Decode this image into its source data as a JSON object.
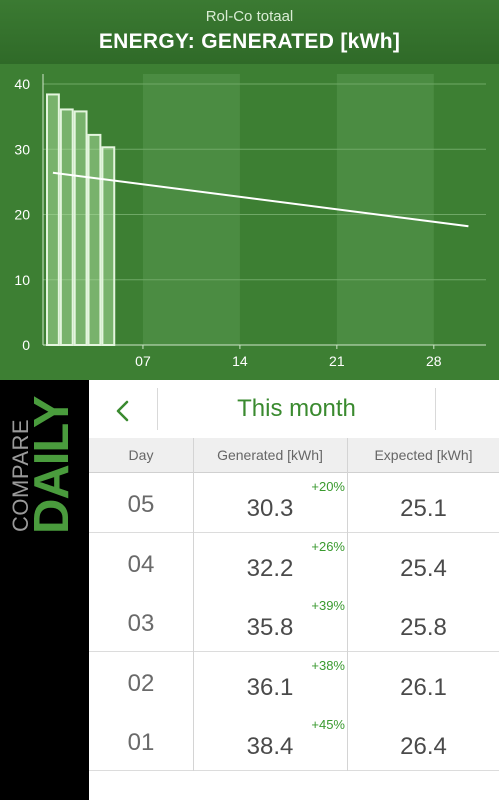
{
  "header": {
    "subtitle": "Rol-Co totaal",
    "title": "ENERGY: GENERATED [kWh]"
  },
  "chart_data": {
    "type": "bar",
    "x_ticks": [
      "07",
      "14",
      "21",
      "28"
    ],
    "y_ticks": [
      "0",
      "10",
      "20",
      "30",
      "40"
    ],
    "ylim": [
      0,
      40
    ],
    "x_range": [
      1,
      31
    ],
    "bars": [
      {
        "day": 1,
        "value": 38.4
      },
      {
        "day": 2,
        "value": 36.1
      },
      {
        "day": 3,
        "value": 35.8
      },
      {
        "day": 4,
        "value": 32.2
      },
      {
        "day": 5,
        "value": 30.3
      }
    ],
    "expected_line": [
      {
        "day": 1,
        "value": 26.4
      },
      {
        "day": 31,
        "value": 18.2
      }
    ],
    "shaded_weeks": [
      [
        8,
        14
      ],
      [
        22,
        28
      ]
    ],
    "colors": {
      "background": "#3d7f33",
      "band": "#4b8c42",
      "bar": "#a9dc9a",
      "line": "#ffffff"
    }
  },
  "side": {
    "compare": "COMPARE",
    "daily": "DAILY"
  },
  "nav": {
    "period": "This month",
    "back_icon": "chevron-left-icon"
  },
  "table": {
    "headers": {
      "day": "Day",
      "generated": "Generated [kWh]",
      "expected": "Expected [kWh]"
    },
    "rows": [
      {
        "day": "05",
        "generated": "30.3",
        "delta": "+20%",
        "expected": "25.1"
      },
      {
        "day": "04",
        "generated": "32.2",
        "delta": "+26%",
        "expected": "25.4"
      },
      {
        "day": "03",
        "generated": "35.8",
        "delta": "+39%",
        "expected": "25.8"
      },
      {
        "day": "02",
        "generated": "36.1",
        "delta": "+38%",
        "expected": "26.1"
      },
      {
        "day": "01",
        "generated": "38.4",
        "delta": "+45%",
        "expected": "26.4"
      }
    ]
  }
}
